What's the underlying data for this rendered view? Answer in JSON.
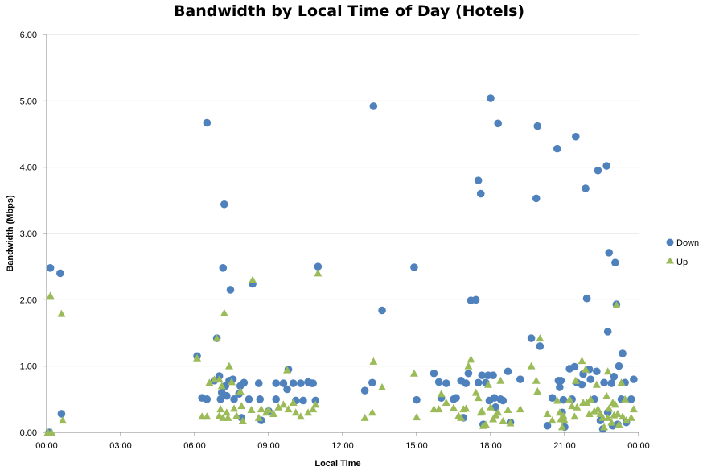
{
  "chart_data": {
    "type": "scatter",
    "title": "Bandwidth by Local Time of Day (Hotels)",
    "xlabel": "Local Time",
    "ylabel": "Bandwidth (Mbps)",
    "xlim": [
      0,
      24
    ],
    "ylim": [
      0,
      6
    ],
    "x_tick_labels": [
      "00:00",
      "03:00",
      "06:00",
      "09:00",
      "12:00",
      "15:00",
      "18:00",
      "21:00",
      "00:00"
    ],
    "y_tick_labels": [
      "0.00",
      "1.00",
      "2.00",
      "3.00",
      "4.00",
      "5.00",
      "6.00"
    ],
    "grid": "horizontal",
    "legend_position": "right",
    "colors": {
      "down": "#4f81bd",
      "up": "#9bbb59",
      "grid": "#d9d9d9",
      "axis": "#868686"
    },
    "series": [
      {
        "name": "Down",
        "marker": "circle",
        "points": [
          [
            0.1,
            0.0
          ],
          [
            0.15,
            2.48
          ],
          [
            0.55,
            2.4
          ],
          [
            0.6,
            0.28
          ],
          [
            6.1,
            1.15
          ],
          [
            6.3,
            0.52
          ],
          [
            6.5,
            4.67
          ],
          [
            6.5,
            0.5
          ],
          [
            6.8,
            0.78
          ],
          [
            6.9,
            1.42
          ],
          [
            7.0,
            0.85
          ],
          [
            7.05,
            0.5
          ],
          [
            7.1,
            0.6
          ],
          [
            7.15,
            2.48
          ],
          [
            7.2,
            3.44
          ],
          [
            7.25,
            0.7
          ],
          [
            7.3,
            0.55
          ],
          [
            7.4,
            0.78
          ],
          [
            7.45,
            2.15
          ],
          [
            7.55,
            0.8
          ],
          [
            7.6,
            0.5
          ],
          [
            7.8,
            0.58
          ],
          [
            7.85,
            0.7
          ],
          [
            7.9,
            0.22
          ],
          [
            8.0,
            0.75
          ],
          [
            8.2,
            0.5
          ],
          [
            8.35,
            2.24
          ],
          [
            8.6,
            0.74
          ],
          [
            8.65,
            0.5
          ],
          [
            8.7,
            0.18
          ],
          [
            9.0,
            0.32
          ],
          [
            9.3,
            0.74
          ],
          [
            9.3,
            0.5
          ],
          [
            9.6,
            0.74
          ],
          [
            9.75,
            0.65
          ],
          [
            9.8,
            0.95
          ],
          [
            10.0,
            0.74
          ],
          [
            10.1,
            0.48
          ],
          [
            10.3,
            0.74
          ],
          [
            10.4,
            0.48
          ],
          [
            10.6,
            0.76
          ],
          [
            10.75,
            0.74
          ],
          [
            10.8,
            0.74
          ],
          [
            10.9,
            0.48
          ],
          [
            11.0,
            2.5
          ],
          [
            12.9,
            0.63
          ],
          [
            13.2,
            0.75
          ],
          [
            13.25,
            4.92
          ],
          [
            13.6,
            1.84
          ],
          [
            14.9,
            2.49
          ],
          [
            15.0,
            0.49
          ],
          [
            15.7,
            0.89
          ],
          [
            15.9,
            0.76
          ],
          [
            16.0,
            0.52
          ],
          [
            16.2,
            0.74
          ],
          [
            16.5,
            0.5
          ],
          [
            16.6,
            0.52
          ],
          [
            16.8,
            0.78
          ],
          [
            16.9,
            0.22
          ],
          [
            17.0,
            0.74
          ],
          [
            17.1,
            0.89
          ],
          [
            17.2,
            1.99
          ],
          [
            17.4,
            2.0
          ],
          [
            17.5,
            3.8
          ],
          [
            17.6,
            3.6
          ],
          [
            17.5,
            0.75
          ],
          [
            17.65,
            0.86
          ],
          [
            17.7,
            0.12
          ],
          [
            17.8,
            0.75
          ],
          [
            17.9,
            0.86
          ],
          [
            17.95,
            0.48
          ],
          [
            18.0,
            5.04
          ],
          [
            18.1,
            0.86
          ],
          [
            18.15,
            0.52
          ],
          [
            18.2,
            0.38
          ],
          [
            18.3,
            4.66
          ],
          [
            18.4,
            0.5
          ],
          [
            18.5,
            0.48
          ],
          [
            18.7,
            0.92
          ],
          [
            18.8,
            0.15
          ],
          [
            19.2,
            0.8
          ],
          [
            19.65,
            1.42
          ],
          [
            19.85,
            3.53
          ],
          [
            19.9,
            4.62
          ],
          [
            20.0,
            1.3
          ],
          [
            20.3,
            0.1
          ],
          [
            20.5,
            0.52
          ],
          [
            20.7,
            4.28
          ],
          [
            20.75,
            0.78
          ],
          [
            20.8,
            0.68
          ],
          [
            20.85,
            0.78
          ],
          [
            20.9,
            0.3
          ],
          [
            20.95,
            0.49
          ],
          [
            21.0,
            0.08
          ],
          [
            21.2,
            0.96
          ],
          [
            21.3,
            0.5
          ],
          [
            21.4,
            0.99
          ],
          [
            21.45,
            4.46
          ],
          [
            21.5,
            0.75
          ],
          [
            21.7,
            0.72
          ],
          [
            21.75,
            0.88
          ],
          [
            21.85,
            3.68
          ],
          [
            21.9,
            2.02
          ],
          [
            22.0,
            0.95
          ],
          [
            22.05,
            0.8
          ],
          [
            22.2,
            0.5
          ],
          [
            22.3,
            0.92
          ],
          [
            22.35,
            3.95
          ],
          [
            22.45,
            0.18
          ],
          [
            22.55,
            0.05
          ],
          [
            22.6,
            0.75
          ],
          [
            22.7,
            4.02
          ],
          [
            22.75,
            0.3
          ],
          [
            22.8,
            2.71
          ],
          [
            22.75,
            1.52
          ],
          [
            22.9,
            0.74
          ],
          [
            22.95,
            0.1
          ],
          [
            23.0,
            0.84
          ],
          [
            23.05,
            2.56
          ],
          [
            23.1,
            1.93
          ],
          [
            23.15,
            0.12
          ],
          [
            23.2,
            1.0
          ],
          [
            23.3,
            0.5
          ],
          [
            23.35,
            1.19
          ],
          [
            23.45,
            0.75
          ],
          [
            23.5,
            0.15
          ],
          [
            23.7,
            0.5
          ],
          [
            23.8,
            0.8
          ]
        ]
      },
      {
        "name": "Up",
        "marker": "triangle",
        "points": [
          [
            0.05,
            0.0
          ],
          [
            0.15,
            2.06
          ],
          [
            0.2,
            0.0
          ],
          [
            0.6,
            1.79
          ],
          [
            0.65,
            0.18
          ],
          [
            6.1,
            1.12
          ],
          [
            6.3,
            0.24
          ],
          [
            6.5,
            0.24
          ],
          [
            6.6,
            0.75
          ],
          [
            6.8,
            0.8
          ],
          [
            6.9,
            1.42
          ],
          [
            7.0,
            0.8
          ],
          [
            7.0,
            0.25
          ],
          [
            7.05,
            0.35
          ],
          [
            7.1,
            0.7
          ],
          [
            7.15,
            0.22
          ],
          [
            7.2,
            1.8
          ],
          [
            7.3,
            0.3
          ],
          [
            7.35,
            0.22
          ],
          [
            7.4,
            1.0
          ],
          [
            7.5,
            0.76
          ],
          [
            7.6,
            0.36
          ],
          [
            7.7,
            0.25
          ],
          [
            7.85,
            0.62
          ],
          [
            7.9,
            0.4
          ],
          [
            7.95,
            0.17
          ],
          [
            8.3,
            0.34
          ],
          [
            8.35,
            2.3
          ],
          [
            8.6,
            0.22
          ],
          [
            8.7,
            0.35
          ],
          [
            8.9,
            0.3
          ],
          [
            9.0,
            0.34
          ],
          [
            9.2,
            0.28
          ],
          [
            9.4,
            0.38
          ],
          [
            9.6,
            0.42
          ],
          [
            9.75,
            0.94
          ],
          [
            9.8,
            0.35
          ],
          [
            10.0,
            0.45
          ],
          [
            10.1,
            0.3
          ],
          [
            10.3,
            0.24
          ],
          [
            10.6,
            0.3
          ],
          [
            10.8,
            0.35
          ],
          [
            10.9,
            0.42
          ],
          [
            11.0,
            2.4
          ],
          [
            12.9,
            0.22
          ],
          [
            13.2,
            0.3
          ],
          [
            13.25,
            1.07
          ],
          [
            13.6,
            0.68
          ],
          [
            14.9,
            0.89
          ],
          [
            15.0,
            0.23
          ],
          [
            15.7,
            0.35
          ],
          [
            15.9,
            0.35
          ],
          [
            16.0,
            0.58
          ],
          [
            16.2,
            0.45
          ],
          [
            16.5,
            0.37
          ],
          [
            16.7,
            0.25
          ],
          [
            16.8,
            0.22
          ],
          [
            16.9,
            0.35
          ],
          [
            17.0,
            0.36
          ],
          [
            17.1,
            1.0
          ],
          [
            17.2,
            1.1
          ],
          [
            17.4,
            0.6
          ],
          [
            17.5,
            0.52
          ],
          [
            17.6,
            0.3
          ],
          [
            17.65,
            0.32
          ],
          [
            17.7,
            0.1
          ],
          [
            17.8,
            0.12
          ],
          [
            17.9,
            0.72
          ],
          [
            18.0,
            0.38
          ],
          [
            18.1,
            0.2
          ],
          [
            18.2,
            0.26
          ],
          [
            18.3,
            0.3
          ],
          [
            18.4,
            0.78
          ],
          [
            18.5,
            0.17
          ],
          [
            18.7,
            0.34
          ],
          [
            18.8,
            0.14
          ],
          [
            19.2,
            0.35
          ],
          [
            19.65,
            1.0
          ],
          [
            19.85,
            0.78
          ],
          [
            19.9,
            0.62
          ],
          [
            20.0,
            1.42
          ],
          [
            20.3,
            0.28
          ],
          [
            20.5,
            0.18
          ],
          [
            20.7,
            0.48
          ],
          [
            20.8,
            0.3
          ],
          [
            20.85,
            0.2
          ],
          [
            20.9,
            0.08
          ],
          [
            20.95,
            0.25
          ],
          [
            21.0,
            0.18
          ],
          [
            21.2,
            0.5
          ],
          [
            21.3,
            0.4
          ],
          [
            21.4,
            0.24
          ],
          [
            21.45,
            0.78
          ],
          [
            21.5,
            0.38
          ],
          [
            21.7,
            1.08
          ],
          [
            21.75,
            0.45
          ],
          [
            21.85,
            0.95
          ],
          [
            21.9,
            0.45
          ],
          [
            22.0,
            0.28
          ],
          [
            22.05,
            0.5
          ],
          [
            22.2,
            0.32
          ],
          [
            22.3,
            0.72
          ],
          [
            22.35,
            0.35
          ],
          [
            22.45,
            0.28
          ],
          [
            22.55,
            0.22
          ],
          [
            22.6,
            0.08
          ],
          [
            22.7,
            0.55
          ],
          [
            22.75,
            0.92
          ],
          [
            22.8,
            0.36
          ],
          [
            22.75,
            0.22
          ],
          [
            22.9,
            0.15
          ],
          [
            22.95,
            0.45
          ],
          [
            23.0,
            0.26
          ],
          [
            23.05,
            0.42
          ],
          [
            23.1,
            1.92
          ],
          [
            23.15,
            0.28
          ],
          [
            23.2,
            0.12
          ],
          [
            23.3,
            0.75
          ],
          [
            23.35,
            0.24
          ],
          [
            23.45,
            0.5
          ],
          [
            23.5,
            0.18
          ],
          [
            23.7,
            0.22
          ],
          [
            23.8,
            0.35
          ]
        ]
      }
    ]
  }
}
